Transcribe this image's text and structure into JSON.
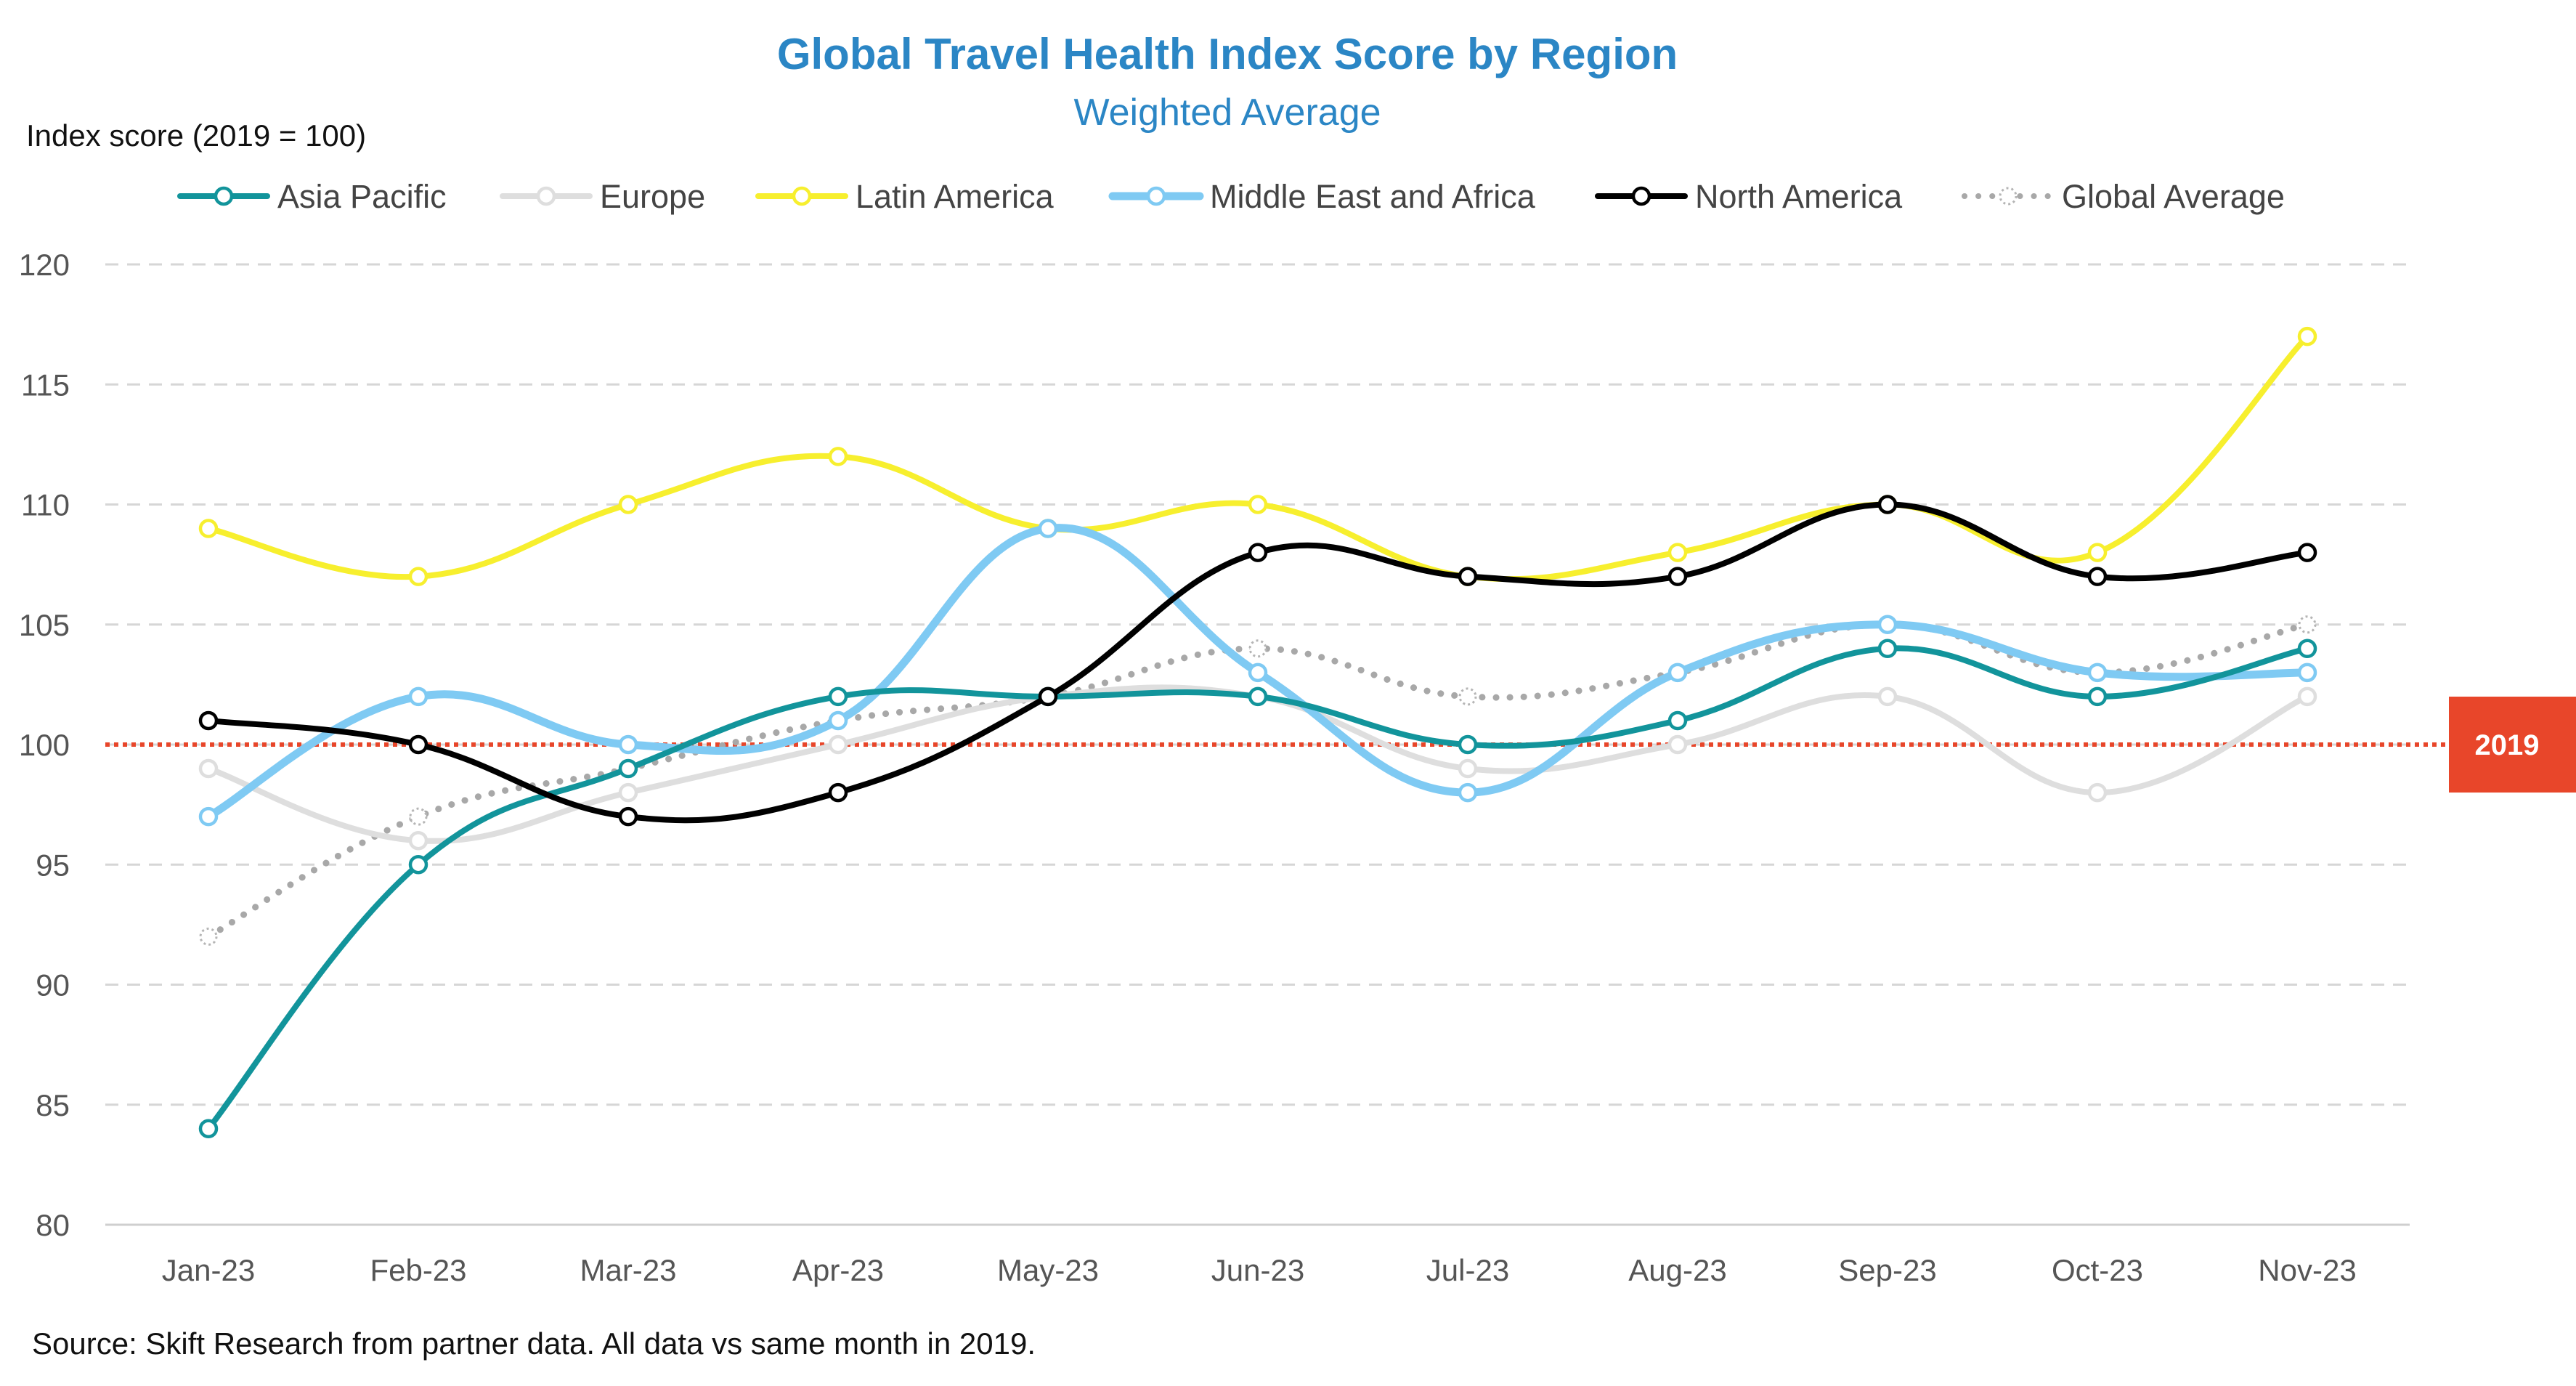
{
  "chart_data": {
    "type": "line",
    "title": "Global Travel Health Index Score by Region",
    "subtitle": "Weighted Average",
    "ylabel": "Index score (2019 = 100)",
    "xlabel": "",
    "source": "Source: Skift Research from partner data. All data vs same month in 2019.",
    "categories": [
      "Jan-23",
      "Feb-23",
      "Mar-23",
      "Apr-23",
      "May-23",
      "Jun-23",
      "Jul-23",
      "Aug-23",
      "Sep-23",
      "Oct-23",
      "Nov-23"
    ],
    "ylim": [
      80,
      120
    ],
    "yticks": [
      80,
      85,
      90,
      95,
      100,
      105,
      110,
      115,
      120
    ],
    "grid": true,
    "legend_position": "top",
    "reference_line": {
      "value": 100,
      "label": "2019",
      "color": "#e8462a"
    },
    "series": [
      {
        "name": "Asia Pacific",
        "color": "#12949b",
        "style": "solid",
        "values": [
          84,
          95,
          99,
          102,
          102,
          102,
          100,
          101,
          104,
          102,
          104
        ]
      },
      {
        "name": "Europe",
        "color": "#dedede",
        "style": "solid",
        "values": [
          99,
          96,
          98,
          100,
          102,
          102,
          99,
          100,
          102,
          98,
          102
        ]
      },
      {
        "name": "Latin America",
        "color": "#f7ef2e",
        "style": "solid",
        "values": [
          109,
          107,
          110,
          112,
          109,
          110,
          107,
          108,
          110,
          108,
          117
        ]
      },
      {
        "name": "Middle East and Africa",
        "color": "#7fcaf3",
        "style": "solid",
        "values": [
          97,
          102,
          100,
          101,
          109,
          103,
          98,
          103,
          105,
          103,
          103
        ]
      },
      {
        "name": "North America",
        "color": "#000000",
        "style": "solid",
        "values": [
          101,
          100,
          97,
          98,
          102,
          108,
          107,
          107,
          110,
          107,
          108
        ]
      },
      {
        "name": "Global Average",
        "color": "#a8a8a8",
        "style": "dotted",
        "values": [
          92,
          97,
          99,
          101,
          102,
          104,
          102,
          103,
          105,
          103,
          105
        ]
      }
    ]
  }
}
